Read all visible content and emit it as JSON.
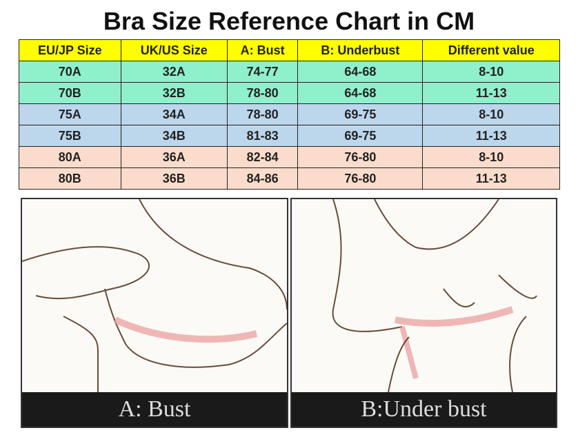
{
  "title": "Bra Size Reference Chart in CM",
  "table": {
    "headers": [
      "EU/JP Size",
      "UK/US Size",
      "A: Bust",
      "B: Underbust",
      "Different value"
    ],
    "rows": [
      [
        "70A",
        "32A",
        "74-77",
        "64-68",
        "8-10"
      ],
      [
        "70B",
        "32B",
        "78-80",
        "64-68",
        "11-13"
      ],
      [
        "75A",
        "34A",
        "78-80",
        "69-75",
        "8-10"
      ],
      [
        "75B",
        "34B",
        "81-83",
        "69-75",
        "11-13"
      ],
      [
        "80A",
        "36A",
        "82-84",
        "76-80",
        "8-10"
      ],
      [
        "80B",
        "36B",
        "84-86",
        "76-80",
        "11-13"
      ]
    ],
    "row_colors": [
      "#8ff0cc",
      "#8ff0cc",
      "#bcd6ec",
      "#bcd6ec",
      "#fbdccc",
      "#fbdccc"
    ],
    "header_color": "#ffff00"
  },
  "illustrations": [
    {
      "caption": "A: Bust"
    },
    {
      "caption": "B:Under bust"
    }
  ]
}
